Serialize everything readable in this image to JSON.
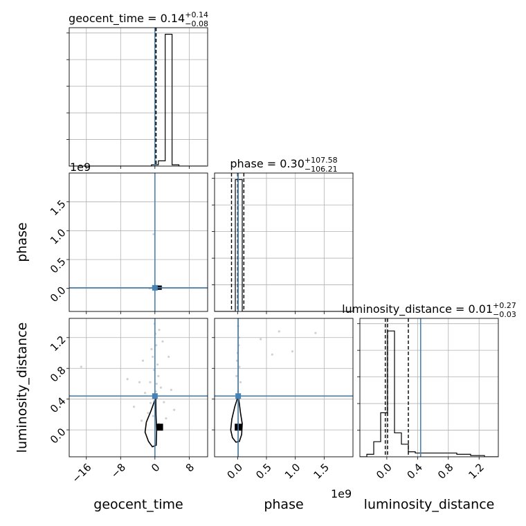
{
  "chart_data": {
    "type": "corner",
    "parameters": [
      "geocent_time",
      "phase",
      "luminosity_distance"
    ],
    "axis_labels": {
      "geocent_time": "geocent_time",
      "phase": "phase",
      "luminosity_distance": "luminosity_distance"
    },
    "offset_labels": {
      "phase_x": "1e9",
      "phase_y": "1e9"
    },
    "truth_color": "#4682b4",
    "truths": {
      "geocent_time": 0.0,
      "phase": 10000000.0,
      "luminosity_distance": 0.44
    },
    "ranges": {
      "geocent_time": [
        -20,
        12.3
      ],
      "phase": [
        -400000000.0,
        2000000000.0
      ],
      "luminosity_distance": [
        -0.35,
        1.45
      ]
    },
    "ticks": {
      "geocent_time": {
        "values": [
          -16,
          -8,
          0,
          8
        ],
        "labels": [
          "−16",
          "−8",
          "0",
          "8"
        ]
      },
      "phase": {
        "values": [
          0.0,
          500000000.0,
          1000000000.0,
          1500000000.0
        ],
        "labels": [
          "0.0",
          "0.5",
          "1.0",
          "1.5"
        ]
      },
      "luminosity_distance": {
        "values": [
          0.0,
          0.4,
          0.8,
          1.2
        ],
        "labels": [
          "0.0",
          "0.4",
          "0.8",
          "1.2"
        ]
      }
    },
    "histograms": [
      {
        "param": "geocent_time",
        "title_prefix": "geocent_time = 0.14",
        "title_sup": "+0.14",
        "title_sub": "−0.08",
        "quantiles": [
          0.06,
          0.14,
          0.28
        ],
        "bins": {
          "start": -20,
          "width": 1.6
        },
        "counts": [
          0,
          0,
          0,
          0,
          0,
          0,
          0,
          0,
          0,
          0,
          0,
          0,
          1,
          4,
          100,
          1,
          0,
          0,
          0,
          0
        ],
        "ymax": 105
      },
      {
        "param": "phase",
        "title_prefix": "phase = 0.30",
        "title_sup": "+107.58",
        "title_sub": "−106.21",
        "quantiles": [
          -106000000.0,
          300000.0,
          108000000.0
        ],
        "bins": {
          "start": -400000000.0,
          "width": 120000000.0
        },
        "counts": [
          0,
          0,
          0,
          100,
          0,
          0,
          0,
          0,
          0,
          0,
          0,
          0,
          0,
          0,
          0,
          0,
          0,
          0,
          0,
          0
        ],
        "ymax": 105
      },
      {
        "param": "luminosity_distance",
        "title_prefix": "luminosity_distance = 0.01",
        "title_sup": "+0.27",
        "title_sub": "−0.03",
        "quantiles": [
          -0.02,
          0.01,
          0.28
        ],
        "bins": {
          "start": -0.35,
          "width": 0.09
        },
        "counts": [
          0,
          2,
          12,
          35,
          100,
          19,
          10,
          4,
          3,
          3,
          3,
          3,
          3,
          3,
          2,
          2,
          1,
          1,
          0,
          0
        ],
        "ymax": 110
      }
    ],
    "scatter_2d": [
      {
        "x": "geocent_time",
        "y": "phase",
        "points": [
          [
            0.2,
            20000000.0
          ],
          [
            -0.6,
            10000000.0
          ],
          [
            0.9,
            -10000000.0
          ],
          [
            1.5,
            30000000.0
          ],
          [
            -0.3,
            940000000.0
          ],
          [
            0.5,
            0.0
          ],
          [
            1.1,
            10000000.0
          ],
          [
            -1.2,
            0.0
          ],
          [
            0.7,
            40000000.0
          ]
        ],
        "density_box": {
          "x": [
            0.4,
            1.6
          ],
          "y": [
            -25000000.0,
            50000000.0
          ]
        },
        "contours": []
      },
      {
        "x": "geocent_time",
        "y": "luminosity_distance",
        "points": [
          [
            0.1,
            1.25
          ],
          [
            0.3,
            1.1
          ],
          [
            -0.5,
            0.95
          ],
          [
            0.6,
            0.85
          ],
          [
            -0.2,
            0.78
          ],
          [
            0.8,
            0.7
          ],
          [
            -1.1,
            0.62
          ],
          [
            1.4,
            0.55
          ],
          [
            0.2,
            0.5
          ],
          [
            -2.3,
            0.48
          ],
          [
            2.1,
            0.36
          ],
          [
            -3.6,
            0.62
          ],
          [
            -4.9,
            0.3
          ],
          [
            3.2,
            0.95
          ],
          [
            -0.8,
            1.05
          ],
          [
            1.0,
            1.3
          ],
          [
            -1.6,
            0.22
          ],
          [
            2.6,
            0.15
          ],
          [
            -6.4,
            0.66
          ],
          [
            -17.2,
            0.82
          ],
          [
            4.5,
            0.26
          ],
          [
            -0.4,
            0.18
          ],
          [
            0.9,
            0.08
          ],
          [
            -2.8,
            0.9
          ],
          [
            1.8,
            1.15
          ],
          [
            -0.1,
            1.38
          ],
          [
            0.4,
            0.6
          ],
          [
            -1.0,
            0.35
          ],
          [
            3.8,
            0.52
          ],
          [
            -3.1,
            0.12
          ]
        ],
        "density_box": {
          "x": [
            0.3,
            1.9
          ],
          "y": [
            -0.01,
            0.08
          ]
        },
        "contours": [
          [
            [
              0.2,
              0.42
            ],
            [
              -0.9,
              0.25
            ],
            [
              -2.0,
              0.1
            ],
            [
              -2.3,
              -0.03
            ],
            [
              -1.5,
              -0.15
            ],
            [
              -0.6,
              -0.22
            ],
            [
              0.3,
              -0.2
            ],
            [
              0.4,
              0.0
            ],
            [
              0.25,
              0.2
            ],
            [
              0.2,
              0.42
            ]
          ]
        ]
      },
      {
        "x": "phase",
        "y": "luminosity_distance",
        "points": [
          [
            10000000.0,
            1.35
          ],
          [
            20000000.0,
            1.2
          ],
          [
            0.0,
            1.0
          ],
          [
            600000000.0,
            0.98
          ],
          [
            950000000.0,
            1.02
          ],
          [
            1350000000.0,
            1.26
          ],
          [
            720000000.0,
            1.28
          ],
          [
            30000000.0,
            0.82
          ],
          [
            -20000000.0,
            0.7
          ],
          [
            50000000.0,
            0.62
          ],
          [
            10000000.0,
            0.5
          ],
          [
            20000000.0,
            1.1
          ],
          [
            -10000000.0,
            0.9
          ],
          [
            400000000.0,
            1.18
          ]
        ],
        "density_box": {
          "x": [
            -50000000.0,
            80000000.0
          ],
          "y": [
            -0.01,
            0.08
          ]
        },
        "contours": [
          [
            [
              10000000.0,
              0.44
            ],
            [
              -50000000.0,
              0.3
            ],
            [
              -100000000.0,
              0.14
            ],
            [
              -120000000.0,
              0.0
            ],
            [
              -90000000.0,
              -0.1
            ],
            [
              -30000000.0,
              -0.16
            ],
            [
              30000000.0,
              -0.15
            ],
            [
              70000000.0,
              -0.06
            ],
            [
              80000000.0,
              0.08
            ],
            [
              50000000.0,
              0.22
            ],
            [
              30000000.0,
              0.34
            ],
            [
              10000000.0,
              0.44
            ]
          ]
        ]
      }
    ]
  }
}
